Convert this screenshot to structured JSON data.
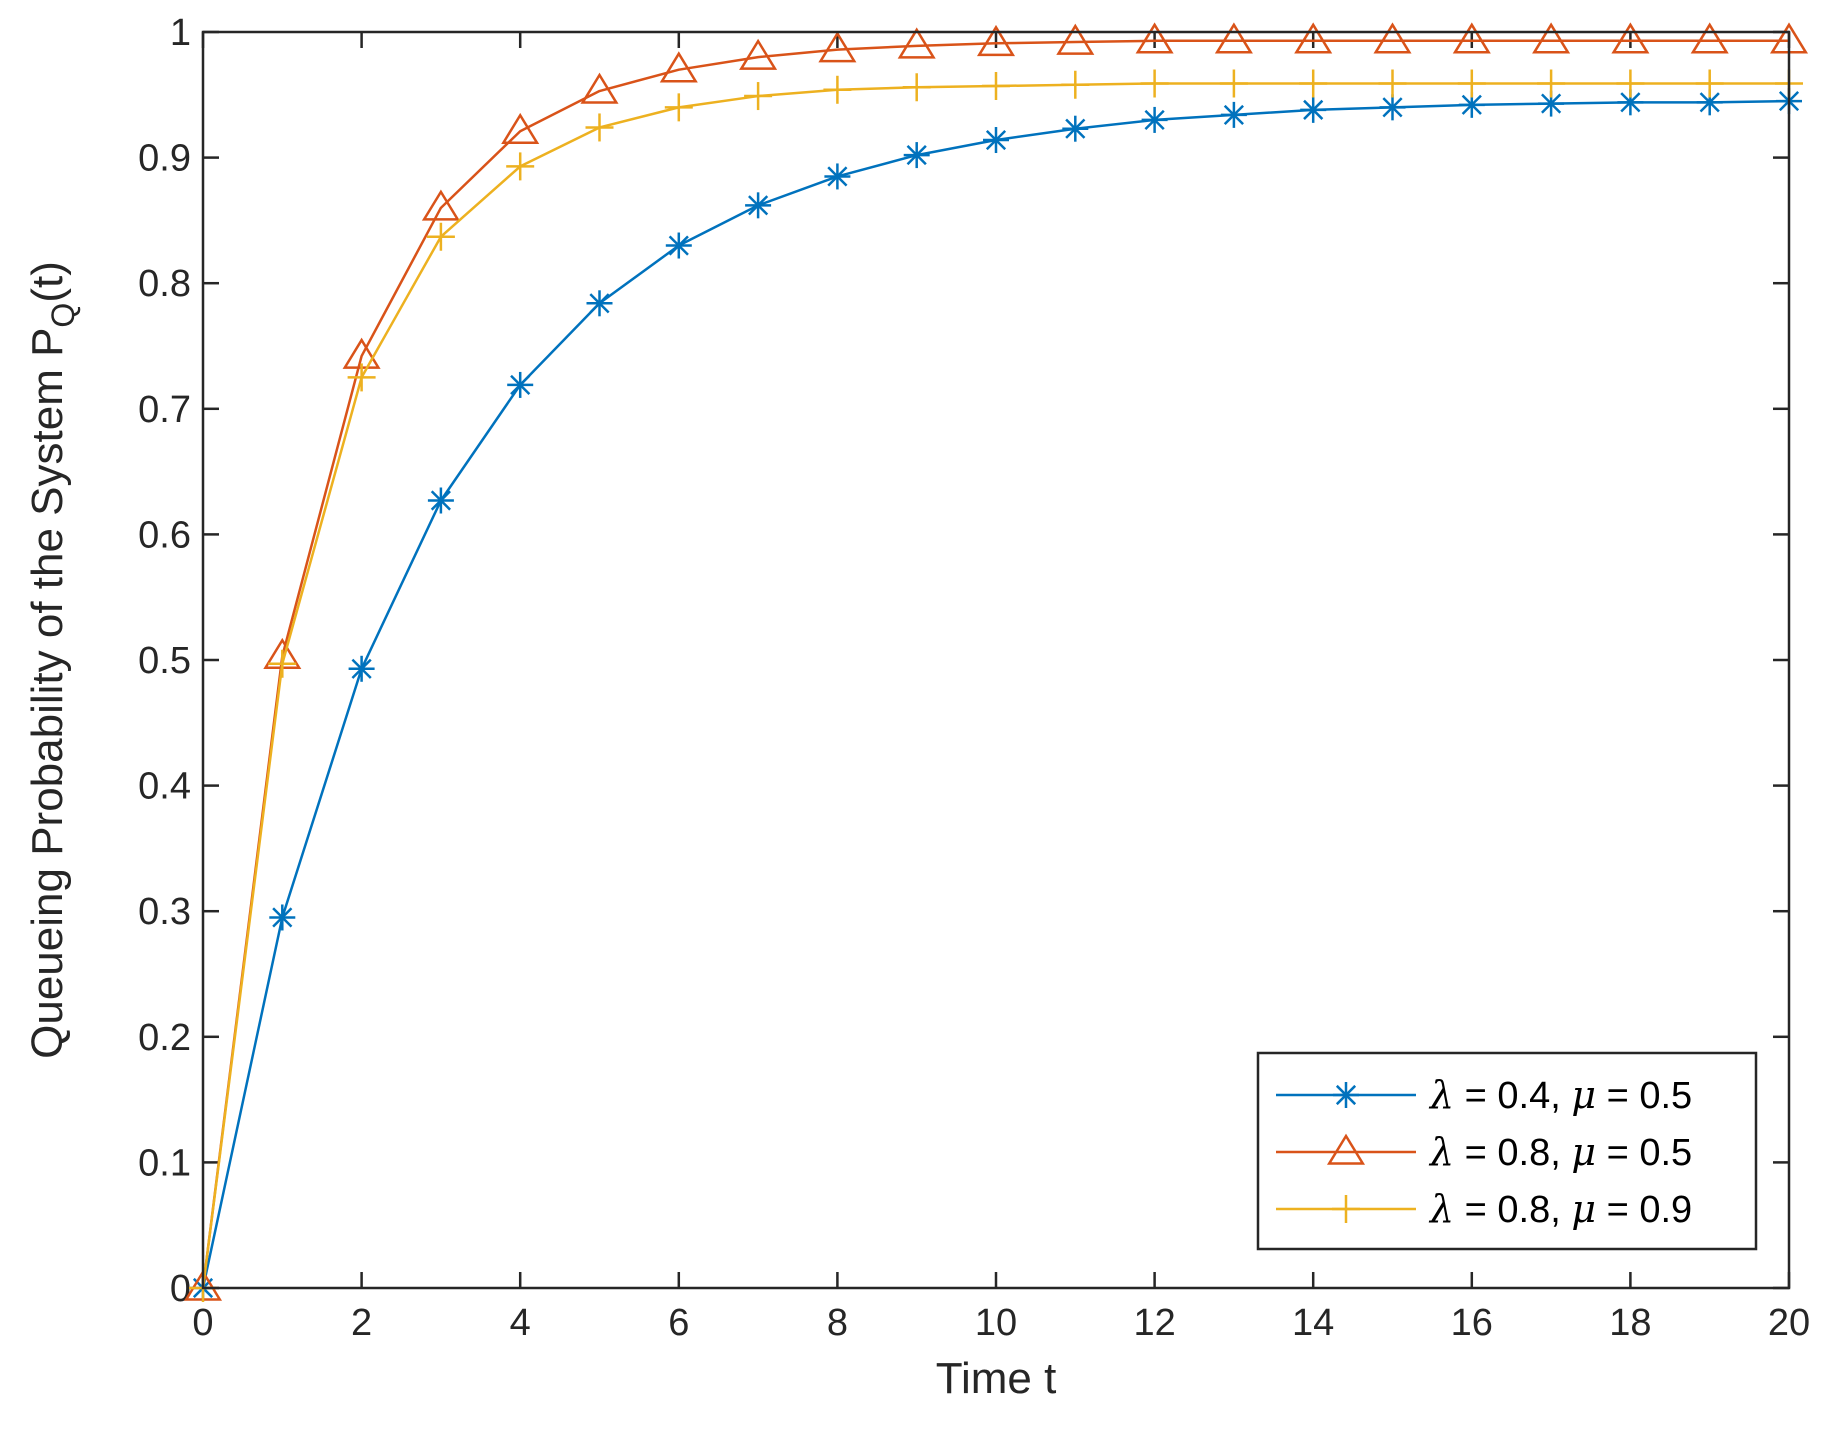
{
  "chart_data": {
    "type": "line",
    "xlabel": "Time t",
    "ylabel": "Queueing Probability of the System P",
    "ylabel_subscript": "Q",
    "ylabel_suffix": "(t)",
    "xlim": [
      0,
      20
    ],
    "ylim": [
      0,
      1
    ],
    "xticks": [
      0,
      2,
      4,
      6,
      8,
      10,
      12,
      14,
      16,
      18,
      20
    ],
    "yticks": [
      0,
      0.1,
      0.2,
      0.3,
      0.4,
      0.5,
      0.6,
      0.7,
      0.8,
      0.9,
      1
    ],
    "grid": false,
    "legend_position": "bottom-right",
    "x": [
      0,
      1,
      2,
      3,
      4,
      5,
      6,
      7,
      8,
      9,
      10,
      11,
      12,
      13,
      14,
      15,
      16,
      17,
      18,
      19,
      20
    ],
    "series": [
      {
        "name": "λ = 0.4,  μ = 0.5",
        "lambda": "0.4",
        "mu": "0.5",
        "color": "#0072BD",
        "marker": "asterisk",
        "values": [
          0,
          0.295,
          0.493,
          0.627,
          0.719,
          0.784,
          0.83,
          0.862,
          0.885,
          0.902,
          0.914,
          0.923,
          0.93,
          0.934,
          0.938,
          0.94,
          0.942,
          0.943,
          0.944,
          0.944,
          0.945
        ]
      },
      {
        "name": "λ = 0.8,  μ = 0.5",
        "lambda": "0.8",
        "mu": "0.5",
        "color": "#D95319",
        "marker": "triangle",
        "values": [
          0,
          0.503,
          0.742,
          0.86,
          0.921,
          0.953,
          0.97,
          0.98,
          0.986,
          0.989,
          0.991,
          0.992,
          0.993,
          0.993,
          0.993,
          0.993,
          0.993,
          0.993,
          0.993,
          0.993,
          0.993
        ]
      },
      {
        "name": "λ = 0.8,  μ = 0.9",
        "lambda": "0.8",
        "mu": "0.9",
        "color": "#EDB120",
        "marker": "plus",
        "values": [
          0,
          0.497,
          0.725,
          0.837,
          0.893,
          0.924,
          0.94,
          0.949,
          0.954,
          0.956,
          0.957,
          0.958,
          0.959,
          0.959,
          0.959,
          0.959,
          0.959,
          0.959,
          0.959,
          0.959,
          0.959
        ]
      }
    ]
  }
}
